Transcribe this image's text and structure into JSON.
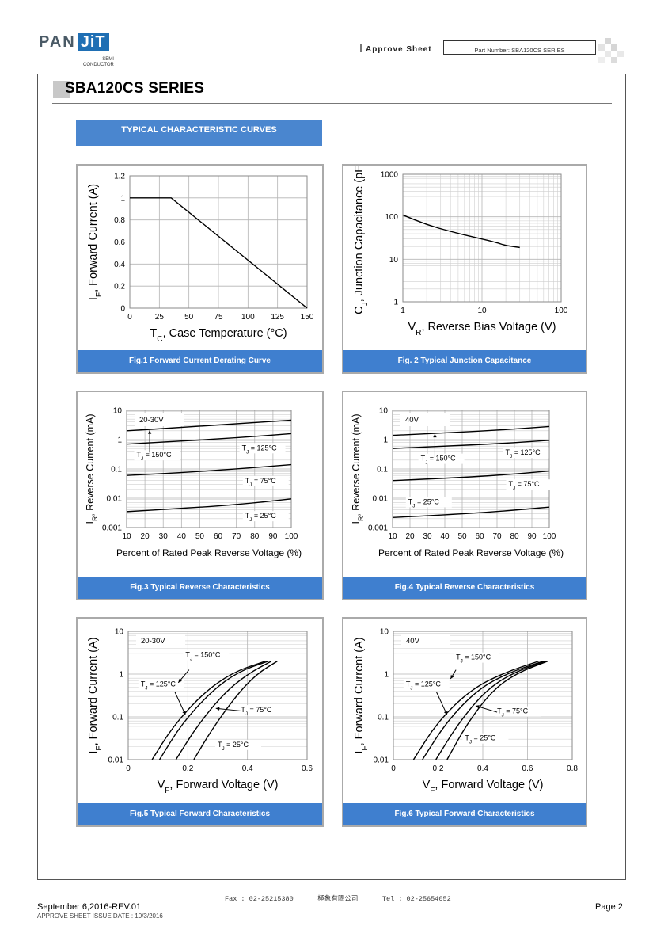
{
  "header": {
    "logo_pan": "PAN",
    "logo_jit": "JiT",
    "logo_sub1": "SEMI",
    "logo_sub2": "CONDUCTOR",
    "approve_label": "Approve Sheet",
    "part_number": "Part Number: SBA120CS  SERIES"
  },
  "title": "SBA120CS SERIES",
  "section": "TYPICAL CHARACTERISTIC CURVES",
  "figures": {
    "fig1": {
      "caption": "Fig.1 Forward Current Derating Curve",
      "ylabel": "I_F, Forward Current (A)",
      "xlabel": "T_C, Case Temperature (°C)"
    },
    "fig2": {
      "caption": "Fig. 2 Typical Junction Capacitance",
      "ylabel": "C_J, Junction Capacitance (pF)",
      "xlabel": "V_R, Reverse Bias Voltage (V)"
    },
    "fig3": {
      "caption": "Fig.3 Typical Reverse Characteristics",
      "ylabel": "I_R, Reverse Current (mA)",
      "xlabel": "Percent of Rated Peak Reverse Voltage (%)",
      "tag": "20-30V"
    },
    "fig4": {
      "caption": "Fig.4 Typical Reverse Characteristics",
      "ylabel": "I_R, Reverse Current (mA)",
      "xlabel": "Percent of Rated Peak Reverse Voltage (%)",
      "tag": "40V"
    },
    "fig5": {
      "caption": "Fig.5 Typical Forward Characteristics",
      "ylabel": "I_F, Forward Current (A)",
      "xlabel": "V_F, Forward Voltage (V)",
      "tag": "20-30V"
    },
    "fig6": {
      "caption": "Fig.6 Typical Forward Characteristics",
      "ylabel": "I_F, Forward Current (A)",
      "xlabel": "V_F, Forward Voltage (V)",
      "tag": "40V"
    }
  },
  "chart_data": [
    {
      "id": "fig1",
      "type": "line",
      "xlim": [
        0,
        150
      ],
      "ylim": [
        0,
        1.2
      ],
      "xticks": [
        0,
        25,
        50,
        75,
        100,
        125,
        150
      ],
      "yticks": [
        0,
        0.2,
        0.4,
        0.6,
        0.8,
        1,
        1.2
      ],
      "series": [
        {
          "points": [
            [
              0,
              1
            ],
            [
              35,
              1
            ],
            [
              150,
              0
            ]
          ]
        }
      ]
    },
    {
      "id": "fig2",
      "type": "line",
      "xscale": "log",
      "yscale": "log",
      "xlim": [
        1,
        100
      ],
      "ylim": [
        1,
        1000
      ],
      "xticks": [
        1,
        10,
        100
      ],
      "yticks": [
        1,
        10,
        100,
        1000
      ],
      "series": [
        {
          "points": [
            [
              1,
              110
            ],
            [
              2,
              65
            ],
            [
              4,
              45
            ],
            [
              8,
              33
            ],
            [
              15,
              25
            ],
            [
              20,
              21
            ],
            [
              30,
              19
            ]
          ]
        }
      ]
    },
    {
      "id": "fig3",
      "type": "line",
      "yscale": "log",
      "xlim": [
        10,
        100
      ],
      "ylim": [
        0.001,
        10
      ],
      "xticks": [
        10,
        20,
        30,
        40,
        50,
        60,
        70,
        80,
        90,
        100
      ],
      "yticks": [
        0.001,
        0.01,
        0.1,
        1,
        10
      ],
      "series": [
        {
          "name": "T_J = 150°C",
          "points": [
            [
              10,
              2.0
            ],
            [
              40,
              2.6
            ],
            [
              70,
              3.5
            ],
            [
              100,
              4.6
            ]
          ]
        },
        {
          "name": "T_J = 125°C",
          "points": [
            [
              10,
              0.7
            ],
            [
              40,
              0.9
            ],
            [
              70,
              1.15
            ],
            [
              100,
              1.6
            ]
          ]
        },
        {
          "name": "T_J = 75°C",
          "points": [
            [
              10,
              0.06
            ],
            [
              40,
              0.075
            ],
            [
              70,
              0.1
            ],
            [
              100,
              0.14
            ]
          ]
        },
        {
          "name": "T_J = 25°C",
          "points": [
            [
              10,
              0.0035
            ],
            [
              40,
              0.0045
            ],
            [
              70,
              0.006
            ],
            [
              100,
              0.0095
            ]
          ]
        }
      ],
      "labels": [
        "T_J = 150°C",
        "T_J = 125°C",
        "T_J = 75°C",
        "T_J = 25°C"
      ]
    },
    {
      "id": "fig4",
      "type": "line",
      "yscale": "log",
      "xlim": [
        10,
        100
      ],
      "ylim": [
        0.001,
        10
      ],
      "xticks": [
        10,
        20,
        30,
        40,
        50,
        60,
        70,
        80,
        90,
        100
      ],
      "yticks": [
        0.001,
        0.01,
        0.1,
        1,
        10
      ],
      "series": [
        {
          "name": "T_J = 150°C",
          "points": [
            [
              10,
              1.4
            ],
            [
              40,
              1.7
            ],
            [
              70,
              2.1
            ],
            [
              100,
              2.8
            ]
          ]
        },
        {
          "name": "T_J = 125°C",
          "points": [
            [
              10,
              0.5
            ],
            [
              40,
              0.6
            ],
            [
              70,
              0.72
            ],
            [
              100,
              0.95
            ]
          ]
        },
        {
          "name": "T_J = 75°C",
          "points": [
            [
              10,
              0.04
            ],
            [
              40,
              0.048
            ],
            [
              70,
              0.06
            ],
            [
              100,
              0.085
            ]
          ]
        },
        {
          "name": "T_J = 25°C",
          "points": [
            [
              10,
              0.0022
            ],
            [
              40,
              0.0027
            ],
            [
              70,
              0.0035
            ],
            [
              100,
              0.005
            ]
          ]
        }
      ],
      "labels": [
        "T_J = 150°C",
        "T_J = 125°C",
        "T_J = 75°C",
        "T_J = 25°C"
      ]
    },
    {
      "id": "fig5",
      "type": "line",
      "yscale": "log",
      "xlim": [
        0,
        0.6
      ],
      "ylim": [
        0.01,
        10
      ],
      "xticks": [
        0,
        0.2,
        0.4,
        0.6
      ],
      "yticks": [
        0.01,
        0.1,
        1,
        10
      ],
      "series": [
        {
          "name": "T_J = 150°C",
          "points": [
            [
              0.08,
              0.01
            ],
            [
              0.15,
              0.06
            ],
            [
              0.25,
              0.35
            ],
            [
              0.35,
              1.1
            ],
            [
              0.46,
              2
            ]
          ]
        },
        {
          "name": "T_J = 125°C",
          "points": [
            [
              0.105,
              0.01
            ],
            [
              0.18,
              0.07
            ],
            [
              0.28,
              0.4
            ],
            [
              0.37,
              1.15
            ],
            [
              0.47,
              2
            ]
          ]
        },
        {
          "name": "T_J = 75°C",
          "points": [
            [
              0.16,
              0.01
            ],
            [
              0.23,
              0.06
            ],
            [
              0.32,
              0.35
            ],
            [
              0.4,
              1.0
            ],
            [
              0.48,
              2
            ]
          ]
        },
        {
          "name": "T_J = 25°C",
          "points": [
            [
              0.22,
              0.01
            ],
            [
              0.28,
              0.05
            ],
            [
              0.36,
              0.3
            ],
            [
              0.43,
              1.0
            ],
            [
              0.5,
              2
            ]
          ]
        }
      ],
      "labels": [
        "T_J = 150°C",
        "T_J = 125°C",
        "T_J = 75°C",
        "T_J = 25°C"
      ]
    },
    {
      "id": "fig6",
      "type": "line",
      "yscale": "log",
      "xlim": [
        0,
        0.8
      ],
      "ylim": [
        0.01,
        10
      ],
      "xticks": [
        0,
        0.2,
        0.4,
        0.6,
        0.8
      ],
      "yticks": [
        0.01,
        0.1,
        1,
        10
      ],
      "series": [
        {
          "name": "T_J = 150°C",
          "points": [
            [
              0.09,
              0.01
            ],
            [
              0.2,
              0.08
            ],
            [
              0.35,
              0.45
            ],
            [
              0.5,
              1.1
            ],
            [
              0.65,
              2
            ]
          ]
        },
        {
          "name": "T_J = 125°C",
          "points": [
            [
              0.13,
              0.01
            ],
            [
              0.24,
              0.08
            ],
            [
              0.38,
              0.45
            ],
            [
              0.52,
              1.1
            ],
            [
              0.67,
              2
            ]
          ]
        },
        {
          "name": "T_J = 75°C",
          "points": [
            [
              0.19,
              0.01
            ],
            [
              0.29,
              0.07
            ],
            [
              0.41,
              0.4
            ],
            [
              0.53,
              1.05
            ],
            [
              0.68,
              2
            ]
          ]
        },
        {
          "name": "T_J = 25°C",
          "points": [
            [
              0.24,
              0.01
            ],
            [
              0.33,
              0.07
            ],
            [
              0.44,
              0.4
            ],
            [
              0.55,
              1.05
            ],
            [
              0.69,
              2
            ]
          ]
        }
      ],
      "labels": [
        "T_J = 150°C",
        "T_J = 125°C",
        "T_J = 75°C",
        "T_J = 25°C"
      ]
    }
  ],
  "footer": {
    "fax": "Fax : 02-25215380",
    "company": "極象有限公司",
    "tel": "Tel : 02-25654052",
    "revision": "September 6,2016-REV.01",
    "issue_date": "APPROVE SHEET ISSUE DATE : 10/3/2016",
    "page": "Page 2"
  }
}
